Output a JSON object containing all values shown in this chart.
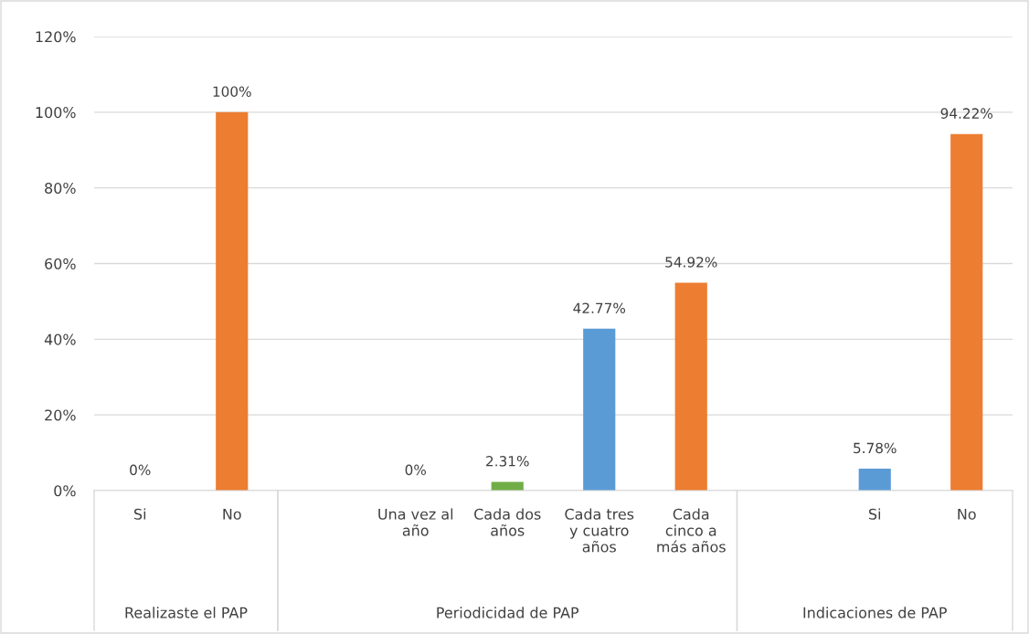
{
  "chart_data": {
    "type": "bar",
    "categories": [
      "Si",
      "No",
      null,
      "Una vez al\naño",
      "Cada dos\naños",
      "Cada tres\ny cuatro\naños",
      "Cada\ncinco a\nmás años",
      null,
      "Si",
      "No"
    ],
    "values": [
      0,
      100,
      null,
      0,
      2.31,
      42.77,
      54.92,
      null,
      5.78,
      94.22
    ],
    "colors": [
      "#5b9bd5",
      "#ed7d31",
      "#5b9bd5",
      "#5b9bd5",
      "#70ad47",
      "#5b9bd5",
      "#ed7d31",
      "#5b9bd5",
      "#5b9bd5",
      "#ed7d31"
    ],
    "value_labels": [
      "0%",
      "100%",
      null,
      "0%",
      "2.31%",
      "42.77%",
      "54.92%",
      null,
      "5.78%",
      "94.22%"
    ],
    "ylim": [
      0,
      120
    ],
    "yticks": [
      {
        "value": 0,
        "label": "0%"
      },
      {
        "value": 20,
        "label": "20%"
      },
      {
        "value": 40,
        "label": "40%"
      },
      {
        "value": 60,
        "label": "60%"
      },
      {
        "value": 80,
        "label": "80%"
      },
      {
        "value": 100,
        "label": "100%"
      },
      {
        "value": 120,
        "label": "120%"
      }
    ],
    "grid": "y",
    "legend": false,
    "annotations": [
      "Realizaste el PAP",
      "Periodicidad de PAP",
      "Indicaciones de PAP"
    ]
  }
}
